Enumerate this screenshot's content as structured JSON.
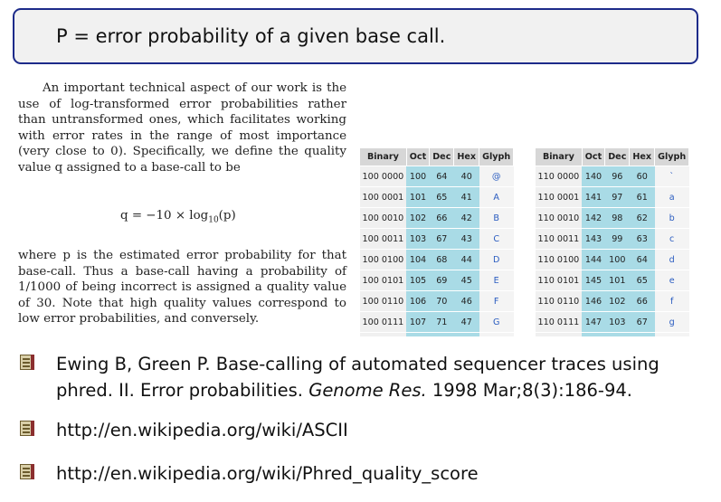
{
  "definition_box": {
    "text": "P = error probability of a given base call."
  },
  "paragraph1": {
    "text": "An important technical aspect of our work is the use of log-transformed error probabilities rather than untransformed ones, which facilitates working with error rates in the range of most importance (very close to 0). Specifically, we define the quality value q assigned to a base-call to be"
  },
  "formula": {
    "lhs": "q = −10 × log",
    "sub": "10",
    "rhs": "(p)"
  },
  "paragraph2": {
    "text": "where p is the estimated error probability for that base-call. Thus a base-call having a probability of 1/1000 of being incorrect is assigned a quality value of 30. Note that high quality values correspond to low error probabilities, and conversely."
  },
  "ascii_table": {
    "headers": [
      "Binary",
      "Oct",
      "Dec",
      "Hex",
      "Glyph"
    ],
    "left_rows": [
      [
        "100 0000",
        "100",
        "64",
        "40",
        "@"
      ],
      [
        "100 0001",
        "101",
        "65",
        "41",
        "A"
      ],
      [
        "100 0010",
        "102",
        "66",
        "42",
        "B"
      ],
      [
        "100 0011",
        "103",
        "67",
        "43",
        "C"
      ],
      [
        "100 0100",
        "104",
        "68",
        "44",
        "D"
      ],
      [
        "100 0101",
        "105",
        "69",
        "45",
        "E"
      ],
      [
        "100 0110",
        "106",
        "70",
        "46",
        "F"
      ],
      [
        "100 0111",
        "107",
        "71",
        "47",
        "G"
      ]
    ],
    "right_rows": [
      [
        "110 0000",
        "140",
        "96",
        "60",
        "`"
      ],
      [
        "110 0001",
        "141",
        "97",
        "61",
        "a"
      ],
      [
        "110 0010",
        "142",
        "98",
        "62",
        "b"
      ],
      [
        "110 0011",
        "143",
        "99",
        "63",
        "c"
      ],
      [
        "110 0100",
        "144",
        "100",
        "64",
        "d"
      ],
      [
        "110 0101",
        "145",
        "101",
        "65",
        "e"
      ],
      [
        "110 0110",
        "146",
        "102",
        "66",
        "f"
      ],
      [
        "110 0111",
        "147",
        "103",
        "67",
        "g"
      ]
    ]
  },
  "references": [
    {
      "text_before_italic": "Ewing B, Green P. Base-calling of automated sequencer traces using phred. II. Error probabilities. ",
      "italic": "Genome Res.",
      "text_after_italic": " 1998 Mar;8(3):186-94.",
      "icon": "document-icon"
    },
    {
      "text": "http://en.wikipedia.org/wiki/ASCII",
      "icon": "document-icon"
    },
    {
      "text": "http://en.wikipedia.org/wiki/Phred_quality_score",
      "icon": "document-icon"
    }
  ],
  "colors": {
    "box_border": "#1d2b8a",
    "box_fill": "#f1f1f1",
    "table_numeric_cells": "#a9dbe6",
    "glyph_text": "#2a5cc0"
  }
}
